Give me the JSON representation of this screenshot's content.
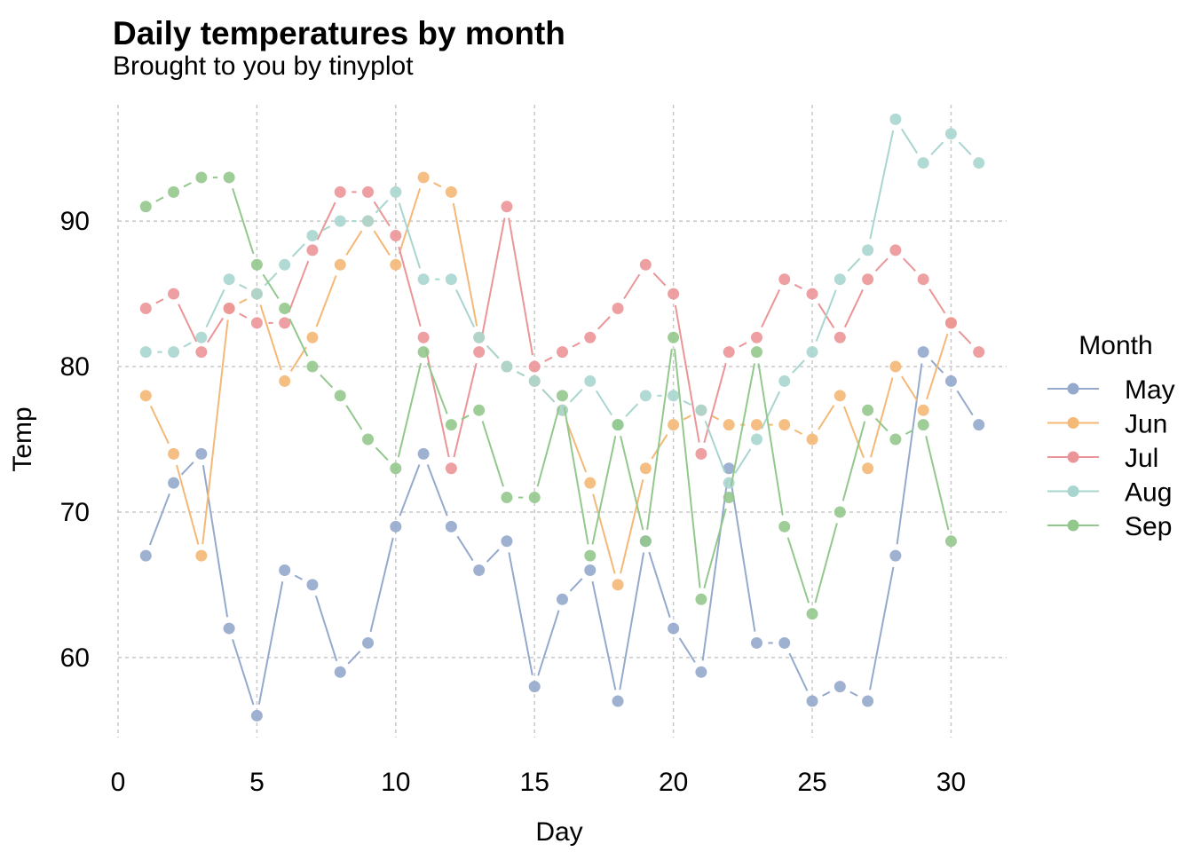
{
  "chart_data": {
    "type": "line",
    "title": "Daily temperatures by month",
    "subtitle": "Brought to you by tinyplot",
    "xlabel": "Day",
    "ylabel": "Temp",
    "xlim": [
      0,
      32
    ],
    "ylim": [
      54.5,
      98
    ],
    "x_ticks": [
      "0",
      "5",
      "10",
      "15",
      "20",
      "25",
      "30"
    ],
    "y_ticks": [
      "60",
      "70",
      "80",
      "90"
    ],
    "grid": true,
    "legend": {
      "title": "Month",
      "position": "right"
    },
    "x": [
      1,
      2,
      3,
      4,
      5,
      6,
      7,
      8,
      9,
      10,
      11,
      12,
      13,
      14,
      15,
      16,
      17,
      18,
      19,
      20,
      21,
      22,
      23,
      24,
      25,
      26,
      27,
      28,
      29,
      30,
      31
    ],
    "series": [
      {
        "name": "May",
        "color": "#95A9CC",
        "values": [
          67,
          72,
          74,
          62,
          56,
          66,
          65,
          59,
          61,
          69,
          74,
          69,
          66,
          68,
          58,
          64,
          66,
          57,
          68,
          62,
          59,
          73,
          61,
          61,
          57,
          58,
          57,
          67,
          81,
          79,
          76
        ]
      },
      {
        "name": "Jun",
        "color": "#F4B877",
        "values": [
          78,
          74,
          67,
          84,
          85,
          79,
          82,
          87,
          90,
          87,
          93,
          92,
          82,
          80,
          79,
          77,
          72,
          65,
          73,
          76,
          77,
          76,
          76,
          76,
          75,
          78,
          73,
          80,
          77,
          83,
          null
        ]
      },
      {
        "name": "Jul",
        "color": "#EB9598",
        "values": [
          84,
          85,
          81,
          84,
          83,
          83,
          88,
          92,
          92,
          89,
          82,
          73,
          81,
          91,
          80,
          81,
          82,
          84,
          87,
          85,
          74,
          81,
          82,
          86,
          85,
          82,
          86,
          88,
          86,
          83,
          81
        ]
      },
      {
        "name": "Aug",
        "color": "#A8D6CF",
        "values": [
          81,
          81,
          82,
          86,
          85,
          87,
          89,
          90,
          90,
          92,
          86,
          86,
          82,
          80,
          79,
          77,
          79,
          76,
          78,
          78,
          77,
          72,
          75,
          79,
          81,
          86,
          88,
          97,
          94,
          96,
          94
        ]
      },
      {
        "name": "Sep",
        "color": "#93C88D",
        "values": [
          91,
          92,
          93,
          93,
          87,
          84,
          80,
          78,
          75,
          73,
          81,
          76,
          77,
          71,
          71,
          78,
          67,
          76,
          68,
          82,
          64,
          71,
          81,
          69,
          63,
          70,
          77,
          75,
          76,
          68,
          null
        ]
      }
    ]
  }
}
